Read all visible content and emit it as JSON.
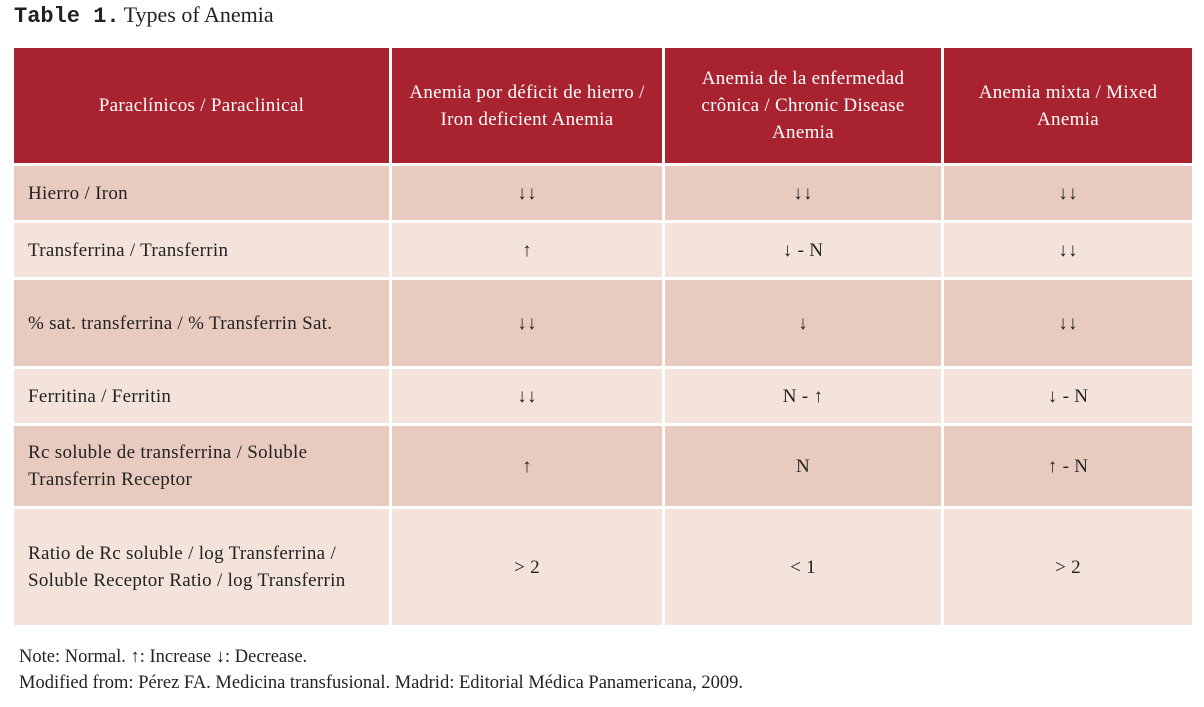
{
  "caption": {
    "label": "Table 1.",
    "title": "Types of Anemia"
  },
  "table": {
    "header": [
      "Paraclínicos / Paraclinical",
      "Anemia por déficit de hierro / Iron deficient Anemia",
      "Anemia de la enfermedad crônica / Chronic Disease Anemia",
      "Anemia mixta / Mixed Anemia"
    ],
    "rows": [
      [
        "Hierro / Iron",
        "↓↓",
        "↓↓",
        "↓↓"
      ],
      [
        "Transferrina / Transferrin",
        "↑",
        "↓ - N",
        "↓↓"
      ],
      [
        "% sat. transferrina / % Transferrin Sat.",
        "↓↓",
        "↓",
        "↓↓"
      ],
      [
        "Ferritina / Ferritin",
        "↓↓",
        "N - ↑",
        "↓ - N"
      ],
      [
        "Rc soluble de transferrina / Soluble Transferrin Receptor",
        "↑",
        "N",
        "↑ - N"
      ],
      [
        "Ratio de Rc soluble / log Transferrina / Soluble Receptor Ratio / log Transferrin",
        "> 2",
        "< 1",
        "> 2"
      ]
    ]
  },
  "notes": [
    "Note: Normal. ↑: Increase ↓: Decrease.",
    "Modified from: Pérez FA. Medicina transfusional. Madrid: Editorial Médica Panamericana, 2009."
  ]
}
